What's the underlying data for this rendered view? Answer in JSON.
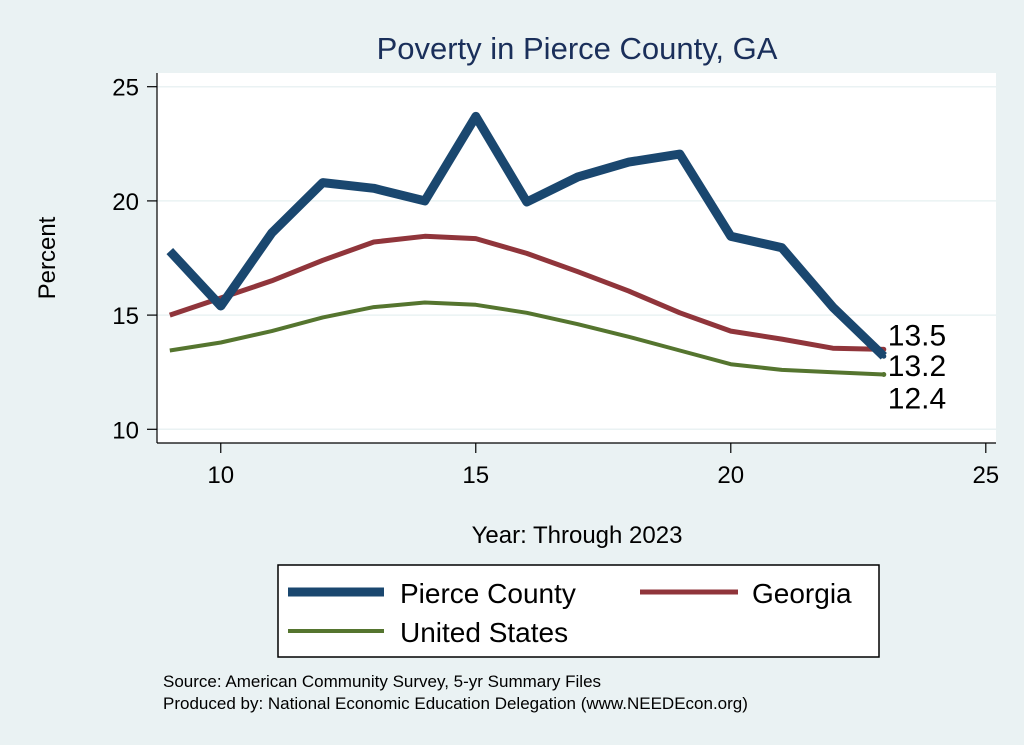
{
  "chart_data": {
    "type": "line",
    "title": "Poverty in Pierce County, GA",
    "xlabel": "Year: Through 2023",
    "ylabel": "Percent",
    "xlim": [
      8.75,
      25.2
    ],
    "ylim": [
      9.4,
      25.6
    ],
    "xticks": [
      10,
      15,
      20,
      25
    ],
    "yticks": [
      10,
      15,
      20,
      25
    ],
    "grid": true,
    "x": [
      9,
      10,
      11,
      12,
      13,
      14,
      15,
      16,
      17,
      18,
      19,
      20,
      21,
      22,
      23
    ],
    "series": [
      {
        "name": "Pierce County",
        "color": "#1a476f",
        "width": 9,
        "values": [
          17.8,
          15.4,
          18.6,
          20.8,
          20.55,
          20.0,
          23.7,
          19.95,
          21.05,
          21.7,
          22.05,
          18.45,
          17.95,
          15.35,
          13.2
        ],
        "end_label": "13.2"
      },
      {
        "name": "Georgia",
        "color": "#90353b",
        "width": 5,
        "values": [
          15.0,
          15.75,
          16.5,
          17.4,
          18.2,
          18.45,
          18.35,
          17.7,
          16.9,
          16.05,
          15.1,
          14.3,
          13.95,
          13.55,
          13.5
        ],
        "end_label": "13.5"
      },
      {
        "name": "United States",
        "color": "#55752f",
        "width": 4,
        "values": [
          13.45,
          13.8,
          14.3,
          14.9,
          15.35,
          15.55,
          15.45,
          15.1,
          14.6,
          14.05,
          13.45,
          12.85,
          12.6,
          12.5,
          12.4
        ],
        "end_label": "12.4"
      }
    ],
    "legend": {
      "placement": "bottom",
      "entries": [
        "Pierce County",
        "Georgia",
        "United States"
      ]
    },
    "notes": [
      "Source: American Community Survey, 5-yr Summary Files",
      "Produced by: National Economic Education Delegation (www.NEEDEcon.org)"
    ]
  }
}
